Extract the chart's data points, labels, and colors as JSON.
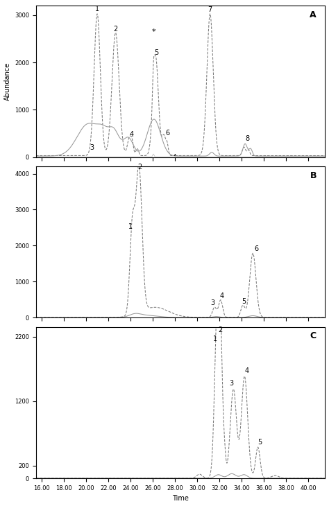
{
  "panels": [
    {
      "label": "A",
      "ylim": [
        0,
        3200
      ],
      "yticks": [
        0,
        1000,
        2000,
        3000
      ],
      "ylabel": "Abundance",
      "star_x": 26.05,
      "star_y": 2580,
      "break_x": 28.0
    },
    {
      "label": "B",
      "ylim": [
        0,
        4200
      ],
      "yticks": [
        0,
        1000,
        2000,
        3000,
        4000
      ],
      "ylabel": ""
    },
    {
      "label": "C",
      "ylim": [
        0,
        2350
      ],
      "yticks": [
        0,
        200,
        1200,
        2200
      ],
      "ylabel": "",
      "xlabel": "Time"
    }
  ],
  "xmin": 15.5,
  "xmax": 41.5,
  "xticks": [
    16.0,
    18.0,
    20.0,
    22.0,
    24.0,
    26.0,
    28.0,
    30.0,
    32.0,
    34.0,
    36.0,
    38.0,
    40.0
  ],
  "xtick_labels": [
    "16.00",
    "18.00",
    "20.00",
    "22.00",
    "24.00",
    "26.00",
    "28.00",
    "30.00",
    "32.00",
    "34.00",
    "36.00",
    "38.00",
    "40.00"
  ],
  "line_color_dashed": "#7a7a7a",
  "line_color_solid": "#999999",
  "line_color_flat": "#bbbbbb",
  "bg_color": "#ffffff",
  "font_size_tick": 6,
  "font_size_panel_label": 9,
  "font_size_peak_label": 7
}
